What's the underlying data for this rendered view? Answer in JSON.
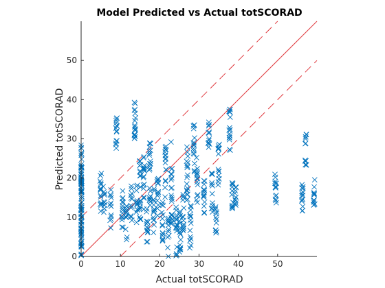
{
  "chart_data": {
    "type": "scatter",
    "title": "Model Predicted vs Actual totSCORAD",
    "xlabel": "Actual totSCORAD",
    "ylabel": "Predicted totSCORAD",
    "xlim": [
      0,
      60
    ],
    "ylim": [
      0,
      60
    ],
    "xticks": [
      0,
      10,
      20,
      30,
      40,
      50
    ],
    "yticks": [
      0,
      10,
      20,
      30,
      40,
      50
    ],
    "grid": false,
    "legend": "none",
    "colors": {
      "points": "#0072BD",
      "lines": "#E0393E",
      "axes": "#262626"
    },
    "reference_lines": [
      {
        "kind": "identity",
        "style": "solid",
        "offset": 0
      },
      {
        "kind": "band",
        "style": "dashed",
        "offset": 10
      },
      {
        "kind": "band",
        "style": "dashed",
        "offset": -10
      }
    ],
    "series": [
      {
        "marker": "x",
        "clusters": [
          {
            "x": 0,
            "y_min": 0,
            "y_max": 28.5,
            "n": 90
          },
          {
            "x": 5,
            "y_min": 10,
            "y_max": 22,
            "n": 16
          },
          {
            "x": 5.8,
            "y_min": 11,
            "y_max": 18,
            "n": 10
          },
          {
            "x": 7.5,
            "y_min": 7,
            "y_max": 18,
            "n": 12
          },
          {
            "x": 9,
            "y_min": 27,
            "y_max": 37,
            "n": 14
          },
          {
            "x": 10.5,
            "y_min": 7,
            "y_max": 17,
            "n": 14
          },
          {
            "x": 11.5,
            "y_min": 4,
            "y_max": 13,
            "n": 12
          },
          {
            "x": 12.8,
            "y_min": 9,
            "y_max": 18,
            "n": 12
          },
          {
            "x": 13.7,
            "y_min": 30,
            "y_max": 41,
            "n": 18
          },
          {
            "x": 14.2,
            "y_min": 8,
            "y_max": 19,
            "n": 12
          },
          {
            "x": 15,
            "y_min": 7,
            "y_max": 25,
            "n": 20
          },
          {
            "x": 16,
            "y_min": 12,
            "y_max": 26,
            "n": 16
          },
          {
            "x": 16.8,
            "y_min": 3,
            "y_max": 13,
            "n": 14
          },
          {
            "x": 17.5,
            "y_min": 11,
            "y_max": 31,
            "n": 22
          },
          {
            "x": 18.5,
            "y_min": 6,
            "y_max": 18,
            "n": 14
          },
          {
            "x": 19.5,
            "y_min": 8,
            "y_max": 20,
            "n": 14
          },
          {
            "x": 20.7,
            "y_min": 3,
            "y_max": 14,
            "n": 14
          },
          {
            "x": 21.5,
            "y_min": 14,
            "y_max": 29,
            "n": 16
          },
          {
            "x": 22.2,
            "y_min": 0,
            "y_max": 10,
            "n": 12
          },
          {
            "x": 23,
            "y_min": 8,
            "y_max": 32,
            "n": 22
          },
          {
            "x": 24.3,
            "y_min": 0,
            "y_max": 14,
            "n": 16
          },
          {
            "x": 25.2,
            "y_min": 1,
            "y_max": 12,
            "n": 18
          },
          {
            "x": 26,
            "y_min": 5,
            "y_max": 16,
            "n": 14
          },
          {
            "x": 27,
            "y_min": 14,
            "y_max": 29,
            "n": 18
          },
          {
            "x": 27.8,
            "y_min": 2,
            "y_max": 13,
            "n": 14
          },
          {
            "x": 28.7,
            "y_min": 21,
            "y_max": 34,
            "n": 16
          },
          {
            "x": 29.5,
            "y_min": 13,
            "y_max": 26,
            "n": 14
          },
          {
            "x": 31.3,
            "y_min": 11,
            "y_max": 20,
            "n": 14
          },
          {
            "x": 32.5,
            "y_min": 27,
            "y_max": 35,
            "n": 12
          },
          {
            "x": 33.3,
            "y_min": 11,
            "y_max": 22,
            "n": 12
          },
          {
            "x": 34.3,
            "y_min": 6,
            "y_max": 15,
            "n": 12
          },
          {
            "x": 35,
            "y_min": 16,
            "y_max": 29,
            "n": 14
          },
          {
            "x": 37.8,
            "y_min": 25,
            "y_max": 38,
            "n": 16
          },
          {
            "x": 38.5,
            "y_min": 12,
            "y_max": 19,
            "n": 12
          },
          {
            "x": 39.3,
            "y_min": 13,
            "y_max": 18,
            "n": 10
          },
          {
            "x": 49.5,
            "y_min": 13,
            "y_max": 22,
            "n": 14
          },
          {
            "x": 56.3,
            "y_min": 10,
            "y_max": 19,
            "n": 14
          },
          {
            "x": 57.2,
            "y_min": 23,
            "y_max": 32,
            "n": 14
          },
          {
            "x": 59.3,
            "y_min": 13,
            "y_max": 20,
            "n": 12
          }
        ]
      }
    ]
  }
}
